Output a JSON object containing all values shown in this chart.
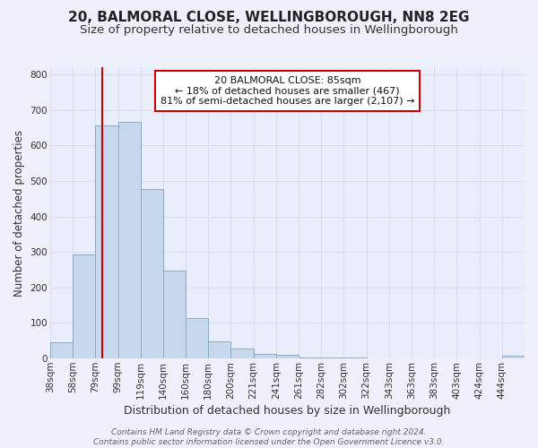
{
  "title": "20, BALMORAL CLOSE, WELLINGBOROUGH, NN8 2EG",
  "subtitle": "Size of property relative to detached houses in Wellingborough",
  "xlabel": "Distribution of detached houses by size in Wellingborough",
  "ylabel": "Number of detached properties",
  "bin_labels": [
    "38sqm",
    "58sqm",
    "79sqm",
    "99sqm",
    "119sqm",
    "140sqm",
    "160sqm",
    "180sqm",
    "200sqm",
    "221sqm",
    "241sqm",
    "261sqm",
    "282sqm",
    "302sqm",
    "322sqm",
    "343sqm",
    "363sqm",
    "383sqm",
    "403sqm",
    "424sqm",
    "444sqm"
  ],
  "bar_values": [
    47,
    293,
    655,
    667,
    477,
    248,
    115,
    48,
    27,
    13,
    10,
    2,
    2,
    2,
    1,
    1,
    1,
    1,
    1,
    1,
    7
  ],
  "bin_starts": [
    38,
    58,
    79,
    99,
    119,
    140,
    160,
    180,
    200,
    221,
    241,
    261,
    282,
    302,
    322,
    343,
    363,
    383,
    403,
    424,
    444
  ],
  "bar_color": "#c8d8ec",
  "bar_edge_color": "#8aaac8",
  "ylim_max": 820,
  "yticks": [
    0,
    100,
    200,
    300,
    400,
    500,
    600,
    700,
    800
  ],
  "property_size": 85,
  "annotation_title": "20 BALMORAL CLOSE: 85sqm",
  "annotation_line1": "← 18% of detached houses are smaller (467)",
  "annotation_line2": "81% of semi-detached houses are larger (2,107) →",
  "footer_line1": "Contains HM Land Registry data © Crown copyright and database right 2024.",
  "footer_line2": "Contains public sector information licensed under the Open Government Licence v3.0.",
  "bg_color": "#eef1fb",
  "plot_bg_color": "#eaeefc",
  "grid_color": "#d8ddf0",
  "red_line_color": "#cc0000",
  "ann_box_edge_color": "#cc0000",
  "title_fontsize": 11,
  "subtitle_fontsize": 9.5,
  "xlabel_fontsize": 9,
  "ylabel_fontsize": 8.5,
  "tick_fontsize": 7.5,
  "ann_fontsize": 8,
  "footer_fontsize": 6.5
}
